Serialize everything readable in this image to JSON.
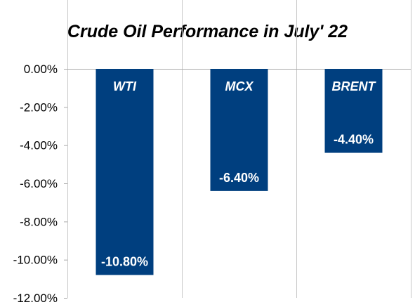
{
  "chart_data": {
    "type": "bar",
    "title": "Crude Oil Performance in July' 22",
    "xlabel": "",
    "ylabel": "",
    "categories": [
      "WTI",
      "MCX",
      "BRENT"
    ],
    "values": [
      -10.8,
      -6.4,
      -4.4
    ],
    "value_labels": [
      "-10.80%",
      "-6.40%",
      "-4.40%"
    ],
    "ylim": [
      -12,
      0
    ],
    "y_ticks": [
      0,
      -2,
      -4,
      -6,
      -8,
      -10,
      -12
    ],
    "y_tick_labels": [
      "0.00%",
      "-2.00%",
      "-4.00%",
      "-6.00%",
      "-8.00%",
      "-10.00%",
      "-12.00%"
    ],
    "grid": "vertical",
    "legend": "none",
    "category_label_position": "inside-bar-top"
  },
  "colors": {
    "bar": "#003F7F",
    "bar_text": "#FFFFFF",
    "grid": "#C8C8C8",
    "axis": "#AAAAAA",
    "text": "#000000"
  }
}
